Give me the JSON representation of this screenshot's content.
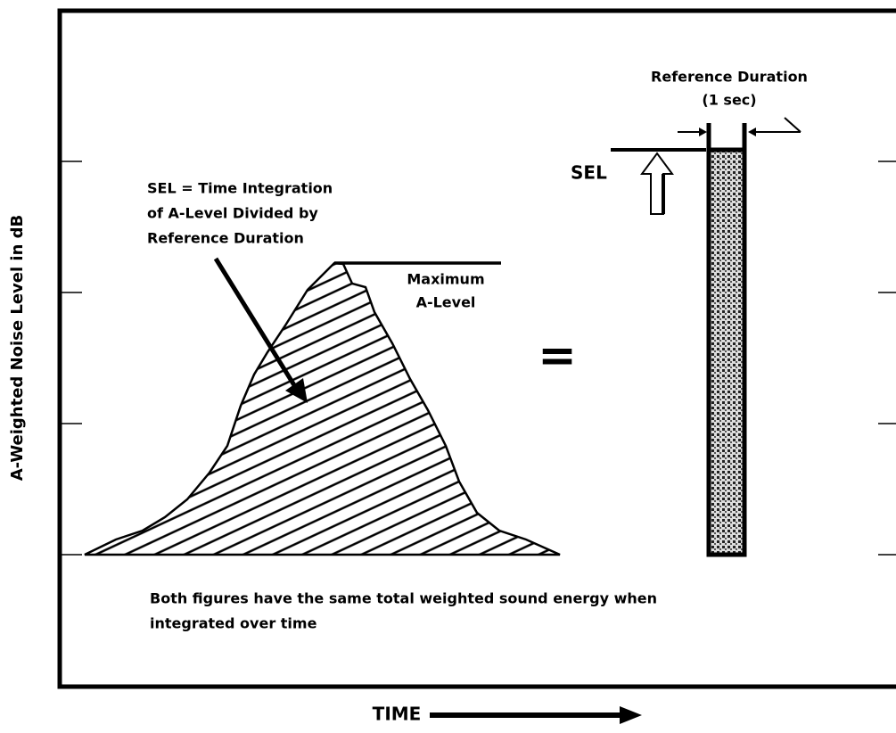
{
  "y_axis_label": "A-Weighted Noise Level in dB",
  "x_axis_label": "TIME",
  "sel_definition": [
    "SEL = Time Integration",
    "of A-Level Divided by",
    "Reference Duration"
  ],
  "maximum_label": [
    "Maximum",
    "A-Level"
  ],
  "equals_sign": "=",
  "sel_label": "SEL",
  "reference_duration": [
    "Reference Duration",
    "(1 sec)"
  ],
  "footnote": [
    "Both figures have the same total weighted sound energy when",
    "integrated over time"
  ]
}
